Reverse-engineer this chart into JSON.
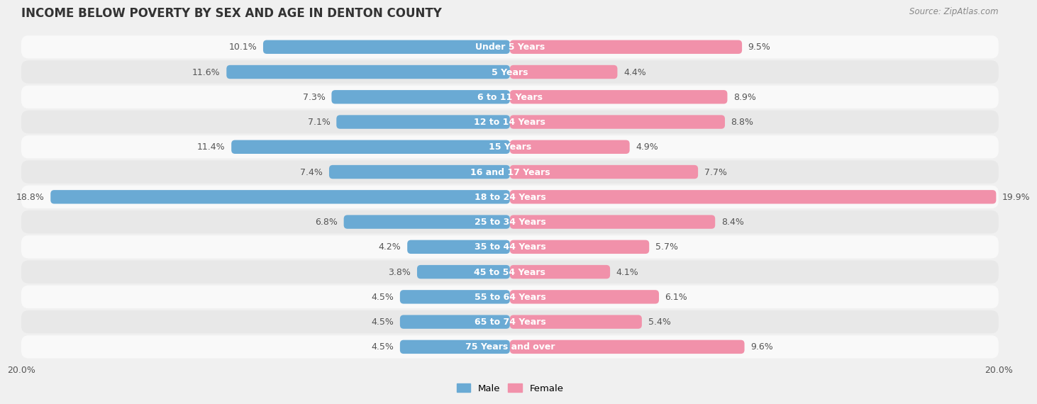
{
  "title": "INCOME BELOW POVERTY BY SEX AND AGE IN DENTON COUNTY",
  "source": "Source: ZipAtlas.com",
  "categories": [
    "Under 5 Years",
    "5 Years",
    "6 to 11 Years",
    "12 to 14 Years",
    "15 Years",
    "16 and 17 Years",
    "18 to 24 Years",
    "25 to 34 Years",
    "35 to 44 Years",
    "45 to 54 Years",
    "55 to 64 Years",
    "65 to 74 Years",
    "75 Years and over"
  ],
  "male_values": [
    10.1,
    11.6,
    7.3,
    7.1,
    11.4,
    7.4,
    18.8,
    6.8,
    4.2,
    3.8,
    4.5,
    4.5,
    4.5
  ],
  "female_values": [
    9.5,
    4.4,
    8.9,
    8.8,
    4.9,
    7.7,
    19.9,
    8.4,
    5.7,
    4.1,
    6.1,
    5.4,
    9.6
  ],
  "male_color": "#6aaad4",
  "female_color": "#f191aa",
  "male_label": "Male",
  "female_label": "Female",
  "axis_max": 20.0,
  "bar_height": 0.55,
  "background_color": "#f0f0f0",
  "row_bg_light": "#f9f9f9",
  "row_bg_dark": "#e8e8e8",
  "title_fontsize": 12,
  "label_fontsize": 9,
  "tick_fontsize": 9,
  "source_fontsize": 8.5,
  "value_label_color": "#555555",
  "value_label_inside_color": "#ffffff"
}
